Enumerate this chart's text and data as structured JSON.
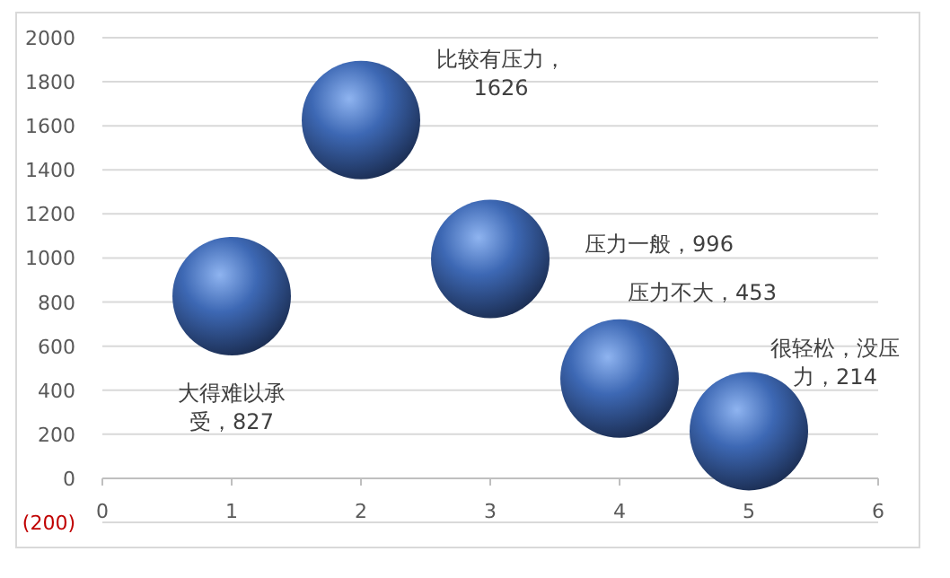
{
  "chart_data": {
    "type": "bubble",
    "x": [
      1,
      2,
      3,
      4,
      5
    ],
    "values": [
      827,
      1626,
      996,
      453,
      214
    ],
    "sizes": [
      1,
      1,
      1,
      1,
      1
    ],
    "value_labels": [
      "大得难以承受，827",
      "比较有压力，1626",
      "压力一般，996",
      "压力不大，453",
      "很轻松，没压力，214"
    ],
    "color": "#3d68b4",
    "xlim": [
      0,
      6
    ],
    "xticks": [
      0,
      1,
      2,
      3,
      4,
      5,
      6
    ],
    "ylim": [
      -200,
      2000
    ],
    "yticks": [
      {
        "value": -200,
        "label": "(200)"
      },
      0,
      200,
      400,
      600,
      800,
      1000,
      1200,
      1400,
      1600,
      1800,
      2000
    ],
    "grid": "y"
  }
}
